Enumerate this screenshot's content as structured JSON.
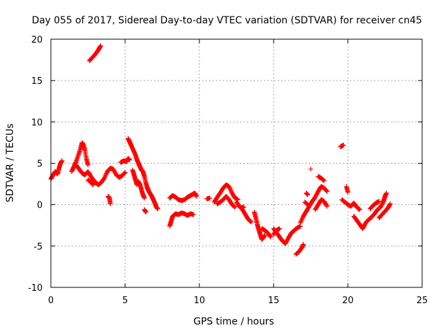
{
  "chart_data": {
    "type": "scatter",
    "title": "Day 055 of 2017, Sidereal Day-to-day VTEC variation (SDTVAR) for receiver cn45",
    "xlabel": "GPS time / hours",
    "ylabel": "SDTVAR / TECUs",
    "xlim": [
      0,
      25
    ],
    "ylim": [
      -10,
      20
    ],
    "xticks": [
      0,
      5,
      10,
      15,
      20,
      25
    ],
    "yticks": [
      -10,
      -5,
      0,
      5,
      10,
      15,
      20
    ],
    "grid": true,
    "marker": "+",
    "series": [
      {
        "name": "SDTVAR",
        "color": "#ff0000",
        "segments": [
          [
            [
              0.0,
              3.1
            ],
            [
              0.15,
              3.6
            ],
            [
              0.3,
              4.0
            ],
            [
              0.45,
              3.7
            ],
            [
              0.55,
              4.4
            ],
            [
              0.65,
              5.0
            ],
            [
              0.75,
              5.3
            ]
          ],
          [
            [
              1.4,
              4.0
            ],
            [
              1.55,
              4.6
            ],
            [
              1.7,
              5.2
            ],
            [
              1.85,
              6.0
            ],
            [
              2.0,
              6.8
            ],
            [
              2.1,
              7.5
            ],
            [
              2.2,
              7.2
            ],
            [
              2.3,
              6.5
            ],
            [
              2.4,
              5.5
            ],
            [
              2.5,
              4.8
            ]
          ],
          [
            [
              1.7,
              4.8
            ],
            [
              1.9,
              4.3
            ],
            [
              2.1,
              3.8
            ],
            [
              2.3,
              3.6
            ],
            [
              2.5,
              4.0
            ],
            [
              2.7,
              3.4
            ],
            [
              2.9,
              2.9
            ],
            [
              3.0,
              2.6
            ]
          ],
          [
            [
              2.5,
              3.0
            ],
            [
              2.7,
              2.7
            ],
            [
              2.85,
              2.4
            ]
          ],
          [
            [
              2.6,
              17.4
            ],
            [
              2.8,
              17.8
            ],
            [
              3.0,
              18.2
            ],
            [
              3.2,
              18.7
            ],
            [
              3.35,
              19.2
            ]
          ],
          [
            [
              3.0,
              2.7
            ],
            [
              3.2,
              2.4
            ],
            [
              3.4,
              2.7
            ],
            [
              3.6,
              3.2
            ],
            [
              3.8,
              4.0
            ],
            [
              4.0,
              4.4
            ],
            [
              4.2,
              4.3
            ],
            [
              4.4,
              3.6
            ],
            [
              4.6,
              3.3
            ],
            [
              4.8,
              3.5
            ],
            [
              5.0,
              3.9
            ]
          ],
          [
            [
              3.85,
              1.0
            ],
            [
              3.95,
              0.8
            ],
            [
              4.0,
              0.1
            ]
          ],
          [
            [
              4.7,
              5.1
            ],
            [
              4.9,
              5.3
            ],
            [
              5.1,
              5.2
            ],
            [
              5.2,
              5.6
            ],
            [
              5.3,
              5.4
            ]
          ],
          [
            [
              5.2,
              8.0
            ],
            [
              5.3,
              7.6
            ],
            [
              5.4,
              7.2
            ],
            [
              5.55,
              6.6
            ],
            [
              5.7,
              6.0
            ],
            [
              5.8,
              5.4
            ],
            [
              5.9,
              5.0
            ],
            [
              6.0,
              4.6
            ],
            [
              6.1,
              4.2
            ],
            [
              6.2,
              4.0
            ],
            [
              6.3,
              3.4
            ],
            [
              6.4,
              2.6
            ],
            [
              6.5,
              2.0
            ],
            [
              6.6,
              1.6
            ],
            [
              6.7,
              1.3
            ],
            [
              6.8,
              1.0
            ],
            [
              6.9,
              0.6
            ],
            [
              7.0,
              0.2
            ],
            [
              7.1,
              -0.3
            ],
            [
              7.2,
              -0.5
            ]
          ],
          [
            [
              5.5,
              4.2
            ],
            [
              5.6,
              3.6
            ],
            [
              5.7,
              3.0
            ],
            [
              5.8,
              2.4
            ],
            [
              5.9,
              2.8
            ],
            [
              6.0,
              2.4
            ],
            [
              6.1,
              1.8
            ],
            [
              6.2,
              1.2
            ],
            [
              6.3,
              0.8
            ]
          ],
          [
            [
              6.3,
              -0.6
            ],
            [
              6.4,
              -0.9
            ]
          ],
          [
            [
              8.0,
              -2.6
            ],
            [
              8.1,
              -2.0
            ],
            [
              8.2,
              -1.4
            ],
            [
              8.4,
              -1.1
            ],
            [
              8.6,
              -1.2
            ],
            [
              8.8,
              -1.0
            ],
            [
              9.0,
              -1.1
            ],
            [
              9.2,
              -1.3
            ],
            [
              9.4,
              -1.1
            ],
            [
              9.6,
              -1.2
            ]
          ],
          [
            [
              8.0,
              0.8
            ],
            [
              8.2,
              1.1
            ],
            [
              8.4,
              0.9
            ],
            [
              8.6,
              0.6
            ],
            [
              8.8,
              0.5
            ],
            [
              9.0,
              0.6
            ],
            [
              9.2,
              0.9
            ],
            [
              9.4,
              1.1
            ],
            [
              9.6,
              1.3
            ],
            [
              9.7,
              1.4
            ],
            [
              9.8,
              1.0
            ]
          ],
          [
            [
              10.5,
              0.7
            ],
            [
              10.7,
              0.8
            ]
          ],
          [
            [
              11.0,
              0.3
            ],
            [
              11.2,
              0.9
            ],
            [
              11.4,
              1.4
            ],
            [
              11.6,
              2.0
            ],
            [
              11.8,
              2.4
            ],
            [
              12.0,
              2.2
            ],
            [
              12.2,
              1.4
            ],
            [
              12.4,
              0.8
            ],
            [
              12.6,
              0.6
            ]
          ],
          [
            [
              11.2,
              0.1
            ],
            [
              11.4,
              0.3
            ],
            [
              11.6,
              0.6
            ],
            [
              11.8,
              1.0
            ],
            [
              12.0,
              0.6
            ],
            [
              12.2,
              0.0
            ],
            [
              12.4,
              -0.3
            ]
          ],
          [
            [
              12.5,
              0.3
            ],
            [
              12.7,
              -0.2
            ],
            [
              12.9,
              -0.6
            ],
            [
              13.1,
              -1.2
            ],
            [
              13.3,
              -1.8
            ],
            [
              13.5,
              -2.1
            ]
          ],
          [
            [
              12.8,
              -0.4
            ],
            [
              13.0,
              -0.3
            ]
          ],
          [
            [
              13.7,
              -0.9
            ],
            [
              13.8,
              -1.6
            ],
            [
              13.9,
              -2.4
            ],
            [
              14.0,
              -3.0
            ],
            [
              14.1,
              -3.6
            ],
            [
              14.2,
              -4.2
            ],
            [
              14.3,
              -4.0
            ],
            [
              14.4,
              -3.7
            ]
          ],
          [
            [
              14.2,
              -2.9
            ],
            [
              14.4,
              -3.1
            ],
            [
              14.6,
              -3.4
            ],
            [
              14.8,
              -3.9
            ]
          ],
          [
            [
              15.0,
              -2.9
            ],
            [
              15.2,
              -3.4
            ],
            [
              15.4,
              -3.9
            ],
            [
              15.6,
              -4.4
            ],
            [
              15.8,
              -4.7
            ],
            [
              16.0,
              -4.0
            ],
            [
              16.2,
              -3.4
            ],
            [
              16.4,
              -3.1
            ],
            [
              16.6,
              -2.8
            ],
            [
              16.8,
              -2.6
            ]
          ],
          [
            [
              15.0,
              -3.6
            ],
            [
              15.2,
              -3.1
            ],
            [
              15.4,
              -2.9
            ]
          ],
          [
            [
              16.5,
              -6.0
            ],
            [
              16.7,
              -5.7
            ],
            [
              16.9,
              -5.2
            ],
            [
              17.0,
              -4.8
            ]
          ],
          [
            [
              16.8,
              -2.2
            ],
            [
              17.0,
              -1.4
            ],
            [
              17.2,
              -0.8
            ],
            [
              17.4,
              -0.2
            ],
            [
              17.6,
              0.4
            ],
            [
              17.8,
              0.9
            ],
            [
              18.0,
              1.6
            ],
            [
              18.2,
              2.2
            ],
            [
              18.4,
              2.0
            ],
            [
              18.6,
              1.6
            ]
          ],
          [
            [
              17.1,
              0.3
            ],
            [
              17.3,
              0.0
            ]
          ],
          [
            [
              17.2,
              1.4
            ],
            [
              17.3,
              1.2
            ]
          ],
          [
            [
              17.5,
              4.3
            ]
          ],
          [
            [
              17.8,
              -0.6
            ],
            [
              18.0,
              0.0
            ],
            [
              18.2,
              0.6
            ],
            [
              18.4,
              0.4
            ],
            [
              18.6,
              -0.2
            ]
          ],
          [
            [
              18.0,
              3.4
            ],
            [
              18.2,
              3.2
            ],
            [
              18.4,
              2.9
            ]
          ],
          [
            [
              19.5,
              7.0
            ],
            [
              19.7,
              7.2
            ]
          ],
          [
            [
              19.6,
              0.6
            ],
            [
              19.8,
              0.3
            ],
            [
              20.0,
              0.0
            ],
            [
              20.2,
              -0.2
            ],
            [
              20.4,
              0.2
            ],
            [
              20.6,
              -0.3
            ],
            [
              20.8,
              -0.6
            ]
          ],
          [
            [
              19.9,
              2.2
            ],
            [
              20.0,
              1.5
            ]
          ],
          [
            [
              20.4,
              -1.4
            ],
            [
              20.6,
              -1.9
            ],
            [
              20.8,
              -2.4
            ],
            [
              21.0,
              -2.9
            ],
            [
              21.2,
              -2.2
            ],
            [
              21.4,
              -1.8
            ],
            [
              21.6,
              -1.5
            ],
            [
              21.8,
              -1.1
            ],
            [
              22.0,
              -0.6
            ],
            [
              22.2,
              -0.3
            ],
            [
              22.4,
              0.4
            ],
            [
              22.5,
              1.0
            ],
            [
              22.6,
              1.4
            ]
          ],
          [
            [
              21.5,
              -0.5
            ],
            [
              21.7,
              -0.1
            ],
            [
              21.9,
              0.2
            ],
            [
              22.1,
              0.4
            ]
          ],
          [
            [
              22.1,
              -1.6
            ],
            [
              22.3,
              -1.2
            ],
            [
              22.5,
              -0.8
            ],
            [
              22.7,
              -0.4
            ],
            [
              22.85,
              0.1
            ]
          ]
        ]
      }
    ]
  }
}
